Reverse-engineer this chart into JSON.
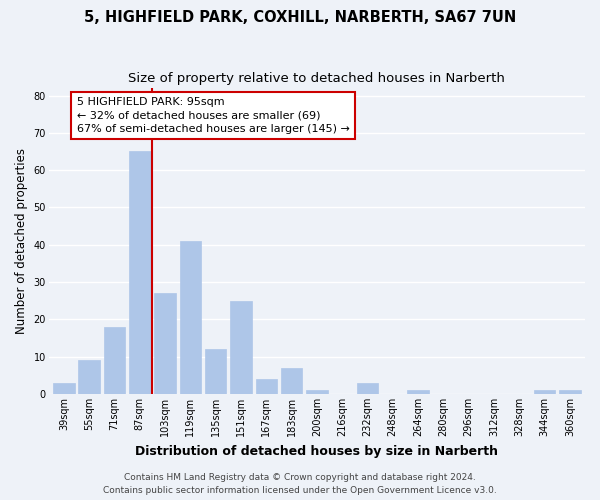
{
  "title": "5, HIGHFIELD PARK, COXHILL, NARBERTH, SA67 7UN",
  "subtitle": "Size of property relative to detached houses in Narberth",
  "xlabel": "Distribution of detached houses by size in Narberth",
  "ylabel": "Number of detached properties",
  "bar_labels": [
    "39sqm",
    "55sqm",
    "71sqm",
    "87sqm",
    "103sqm",
    "119sqm",
    "135sqm",
    "151sqm",
    "167sqm",
    "183sqm",
    "200sqm",
    "216sqm",
    "232sqm",
    "248sqm",
    "264sqm",
    "280sqm",
    "296sqm",
    "312sqm",
    "328sqm",
    "344sqm",
    "360sqm"
  ],
  "bar_values": [
    3,
    9,
    18,
    65,
    27,
    41,
    12,
    25,
    4,
    7,
    1,
    0,
    3,
    0,
    1,
    0,
    0,
    0,
    0,
    1,
    1
  ],
  "bar_color": "#aec6e8",
  "bar_edge_color": "#aec6e8",
  "marker_bar_index": 3,
  "marker_color": "#cc0000",
  "annotation_line1": "5 HIGHFIELD PARK: 95sqm",
  "annotation_line2": "← 32% of detached houses are smaller (69)",
  "annotation_line3": "67% of semi-detached houses are larger (145) →",
  "box_color": "#cc0000",
  "ylim": [
    0,
    82
  ],
  "yticks": [
    0,
    10,
    20,
    30,
    40,
    50,
    60,
    70,
    80
  ],
  "footer_line1": "Contains HM Land Registry data © Crown copyright and database right 2024.",
  "footer_line2": "Contains public sector information licensed under the Open Government Licence v3.0.",
  "bg_color": "#eef2f8",
  "grid_color": "#ffffff",
  "title_fontsize": 10.5,
  "subtitle_fontsize": 9.5,
  "axis_label_fontsize": 8.5,
  "tick_fontsize": 7,
  "annotation_fontsize": 8,
  "footer_fontsize": 6.5
}
